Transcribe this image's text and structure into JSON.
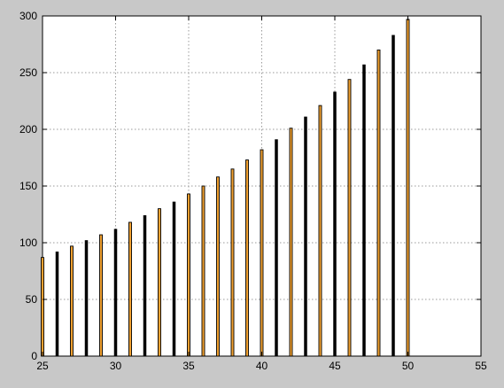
{
  "chart_data": {
    "type": "bar",
    "title": "",
    "xlabel": "",
    "ylabel": "",
    "xlim": [
      25,
      55
    ],
    "ylim": [
      0,
      300
    ],
    "xticks": [
      25,
      30,
      35,
      40,
      45,
      50,
      55
    ],
    "yticks": [
      0,
      50,
      100,
      150,
      200,
      250,
      300
    ],
    "grid": true,
    "legend": "none",
    "x": [
      25,
      26,
      27,
      28,
      29,
      30,
      31,
      32,
      33,
      34,
      35,
      36,
      37,
      38,
      39,
      40,
      41,
      42,
      43,
      44,
      45,
      46,
      47,
      48,
      49,
      50
    ],
    "values": [
      87,
      92,
      97,
      102,
      107,
      112,
      118,
      124,
      130,
      136,
      143,
      150,
      158,
      165,
      173,
      182,
      191,
      201,
      211,
      221,
      233,
      244,
      257,
      270,
      283,
      297
    ],
    "bar_styles": [
      "orange",
      "black",
      "orange",
      "black",
      "orange",
      "black",
      "orange",
      "black",
      "orange",
      "black",
      "orange",
      "orange",
      "orange",
      "orange",
      "orange",
      "orange",
      "black",
      "orange",
      "black",
      "orange",
      "black",
      "orange",
      "black",
      "orange",
      "black",
      "orange"
    ],
    "colors": {
      "background": "#c8c8c8",
      "plot": "#ffffff",
      "bar_outline": "#000000",
      "bar_fill": "#f0a030",
      "grid": "#9a9a9a"
    }
  }
}
